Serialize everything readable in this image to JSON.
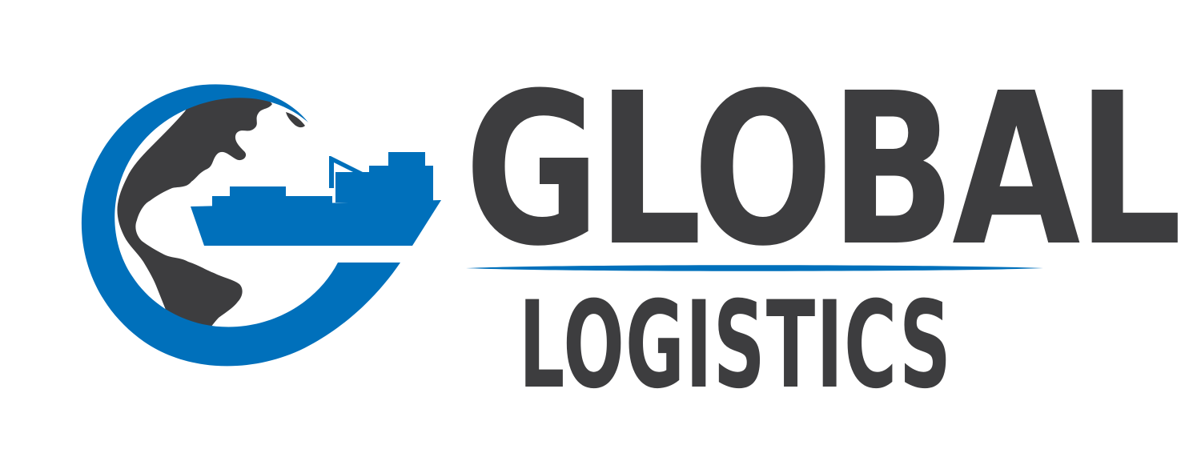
{
  "brand": {
    "primary_word": "GLOBAL",
    "secondary_word": "LOGISTICS",
    "colors": {
      "accent_blue": "#0070bb",
      "charcoal": "#3d3d3f",
      "background": "#ffffff"
    },
    "icons": {
      "emblem": "globe-with-cargo-ship-icon"
    }
  }
}
